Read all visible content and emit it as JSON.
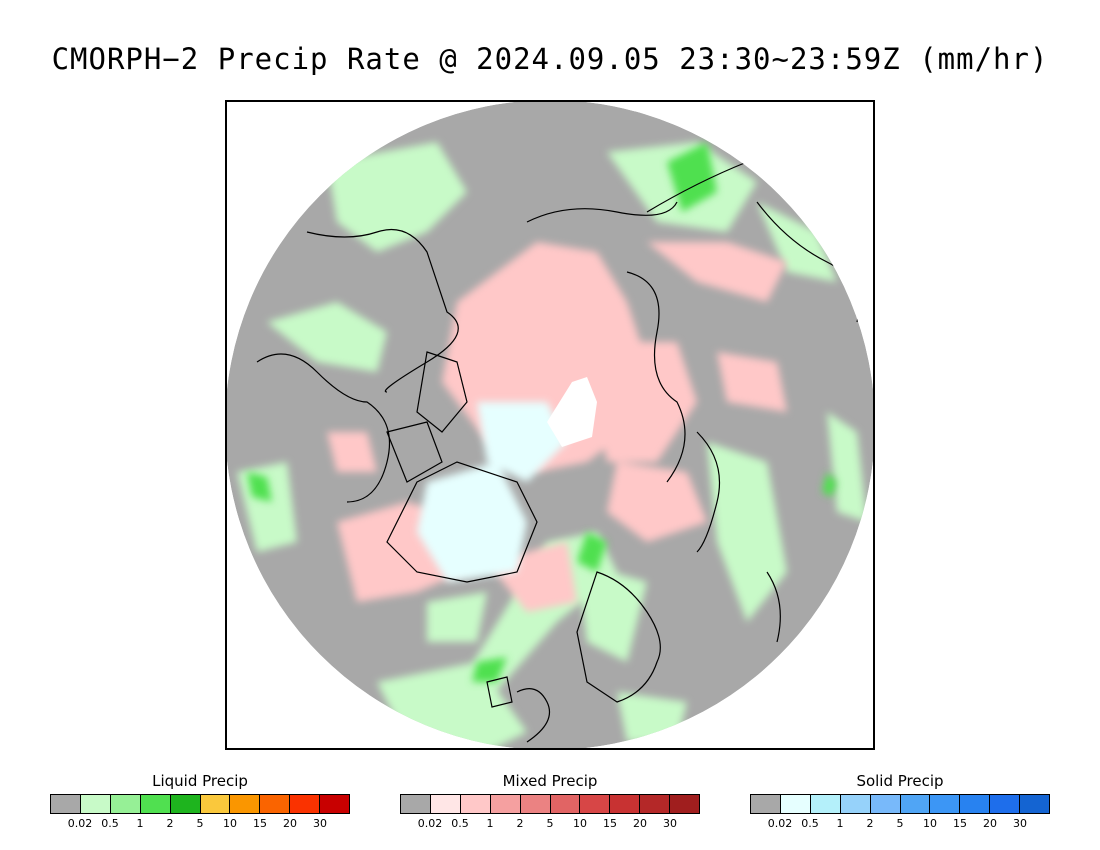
{
  "title": "CMORPH−2 Precip Rate @ 2024.09.05 23:30~23:59Z (mm/hr)",
  "map": {
    "projection": "north-polar-stereographic",
    "background_color": "#a8a8a8",
    "coastline_color": "#000000"
  },
  "legends": [
    {
      "title": "Liquid Precip",
      "colors": [
        "#a8a8a8",
        "#c8fac8",
        "#96f096",
        "#50e050",
        "#1eb41e",
        "#fac83c",
        "#fa9600",
        "#fa6400",
        "#fa3200",
        "#c80000"
      ],
      "ticks": [
        "0.02",
        "0.5",
        "1",
        "2",
        "5",
        "10",
        "15",
        "20",
        "30"
      ]
    },
    {
      "title": "Mixed Precip",
      "colors": [
        "#a8a8a8",
        "#ffe6e6",
        "#ffc8c8",
        "#f5a0a0",
        "#eb8282",
        "#e16464",
        "#d74646",
        "#c83232",
        "#b42828",
        "#a01e1e"
      ],
      "ticks": [
        "0.02",
        "0.5",
        "1",
        "2",
        "5",
        "10",
        "15",
        "20",
        "30"
      ]
    },
    {
      "title": "Solid Precip",
      "colors": [
        "#a8a8a8",
        "#e6ffff",
        "#b4f0fa",
        "#96d2fa",
        "#78b9fa",
        "#50a5f5",
        "#3c96f5",
        "#2882f0",
        "#1e6eeb",
        "#1464d2"
      ],
      "ticks": [
        "0.02",
        "0.5",
        "1",
        "2",
        "5",
        "10",
        "15",
        "20",
        "30"
      ]
    }
  ]
}
